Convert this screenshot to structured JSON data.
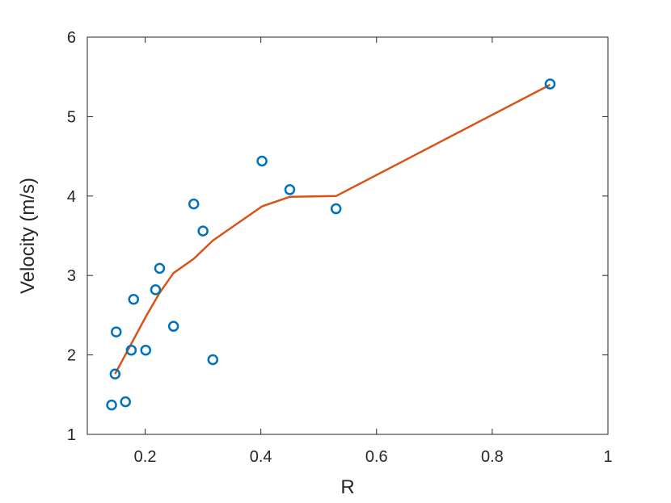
{
  "chart_data": {
    "type": "scatter",
    "xlabel": "R",
    "ylabel": "Velocity (m/s)",
    "xlim": [
      0.1,
      1
    ],
    "ylim": [
      1,
      6
    ],
    "xticks": [
      0.2,
      0.4,
      0.6,
      0.8,
      1
    ],
    "xtick_labels": [
      "0.2",
      "0.4",
      "0.6",
      "0.8",
      "1"
    ],
    "yticks": [
      1,
      2,
      3,
      4,
      5,
      6
    ],
    "ytick_labels": [
      "1",
      "2",
      "3",
      "4",
      "5",
      "6"
    ],
    "grid": false,
    "series": [
      {
        "type": "scatter",
        "marker": "circle-open",
        "color": "#0072BD",
        "points": [
          {
            "x": 0.142,
            "y": 1.37
          },
          {
            "x": 0.148,
            "y": 1.76
          },
          {
            "x": 0.15,
            "y": 2.29
          },
          {
            "x": 0.166,
            "y": 1.41
          },
          {
            "x": 0.176,
            "y": 2.06
          },
          {
            "x": 0.18,
            "y": 2.7
          },
          {
            "x": 0.201,
            "y": 2.06
          },
          {
            "x": 0.218,
            "y": 2.82
          },
          {
            "x": 0.225,
            "y": 3.09
          },
          {
            "x": 0.249,
            "y": 2.36
          },
          {
            "x": 0.284,
            "y": 3.9
          },
          {
            "x": 0.3,
            "y": 3.56
          },
          {
            "x": 0.317,
            "y": 1.94
          },
          {
            "x": 0.402,
            "y": 4.44
          },
          {
            "x": 0.45,
            "y": 4.08
          },
          {
            "x": 0.53,
            "y": 3.84
          },
          {
            "x": 0.9,
            "y": 5.41
          }
        ]
      },
      {
        "type": "line",
        "color": "#D95319",
        "points": [
          {
            "x": 0.148,
            "y": 1.76
          },
          {
            "x": 0.176,
            "y": 2.14
          },
          {
            "x": 0.201,
            "y": 2.48
          },
          {
            "x": 0.225,
            "y": 2.78
          },
          {
            "x": 0.249,
            "y": 3.03
          },
          {
            "x": 0.284,
            "y": 3.21
          },
          {
            "x": 0.317,
            "y": 3.44
          },
          {
            "x": 0.402,
            "y": 3.87
          },
          {
            "x": 0.45,
            "y": 3.99
          },
          {
            "x": 0.53,
            "y": 4.0
          },
          {
            "x": 0.9,
            "y": 5.4
          }
        ]
      }
    ]
  }
}
